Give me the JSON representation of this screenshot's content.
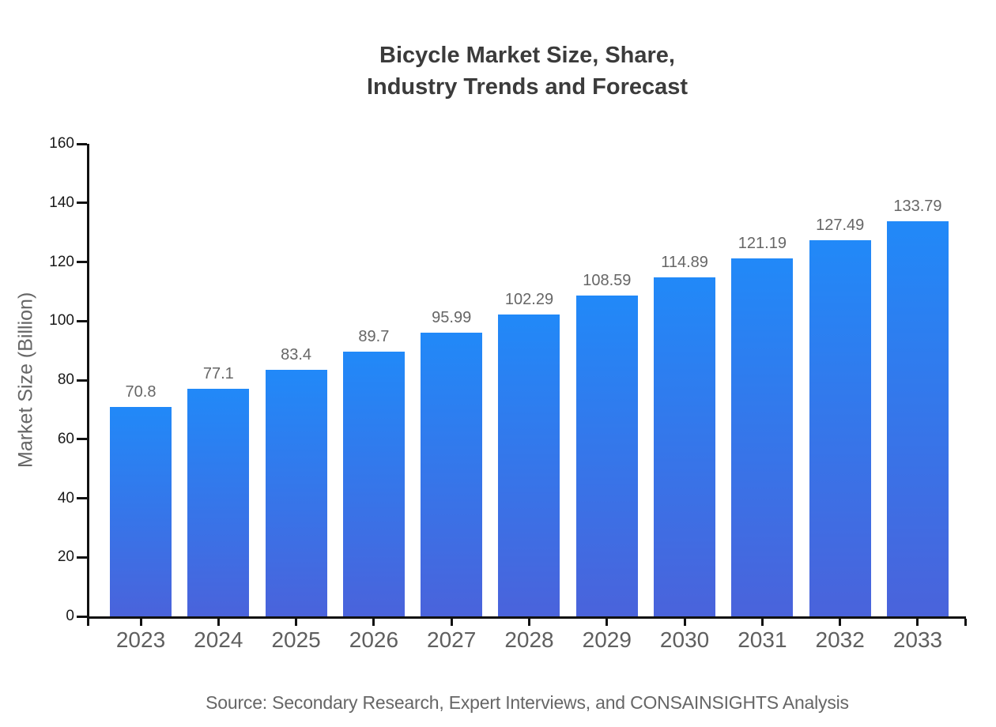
{
  "title": {
    "line1": "Bicycle Market Size, Share,",
    "line2": "Industry Trends and Forecast"
  },
  "source": "Source: Secondary Research, Expert Interviews, and CONSAINSIGHTS Analysis",
  "chart_data": {
    "type": "bar",
    "title": "Bicycle Market Size, Share, Industry Trends and Forecast",
    "categories": [
      "2023",
      "2024",
      "2025",
      "2026",
      "2027",
      "2028",
      "2029",
      "2030",
      "2031",
      "2032",
      "2033"
    ],
    "values": [
      70.8,
      77.1,
      83.4,
      89.7,
      95.99,
      102.29,
      108.59,
      114.89,
      121.19,
      127.49,
      133.79
    ],
    "data_labels": [
      "70.8",
      "77.1",
      "83.4",
      "89.7",
      "95.99",
      "102.29",
      "108.59",
      "114.89",
      "121.19",
      "127.49",
      "133.79"
    ],
    "xlabel": "",
    "ylabel": "Market Size (Billion)",
    "ylim": [
      0,
      160
    ],
    "yticks": [
      0,
      20,
      40,
      60,
      80,
      100,
      120,
      140,
      160
    ],
    "grid": false,
    "legend": null,
    "colors": {
      "bar_gradient_top": "#2189f8",
      "bar_gradient_bottom": "#4a63db",
      "axis": "#111111",
      "y_tick_label": "#1a1a1a",
      "x_tick_label": "#5f5f5f",
      "value_label": "#666666",
      "title": "#3b3b3b",
      "source": "#666666"
    }
  }
}
